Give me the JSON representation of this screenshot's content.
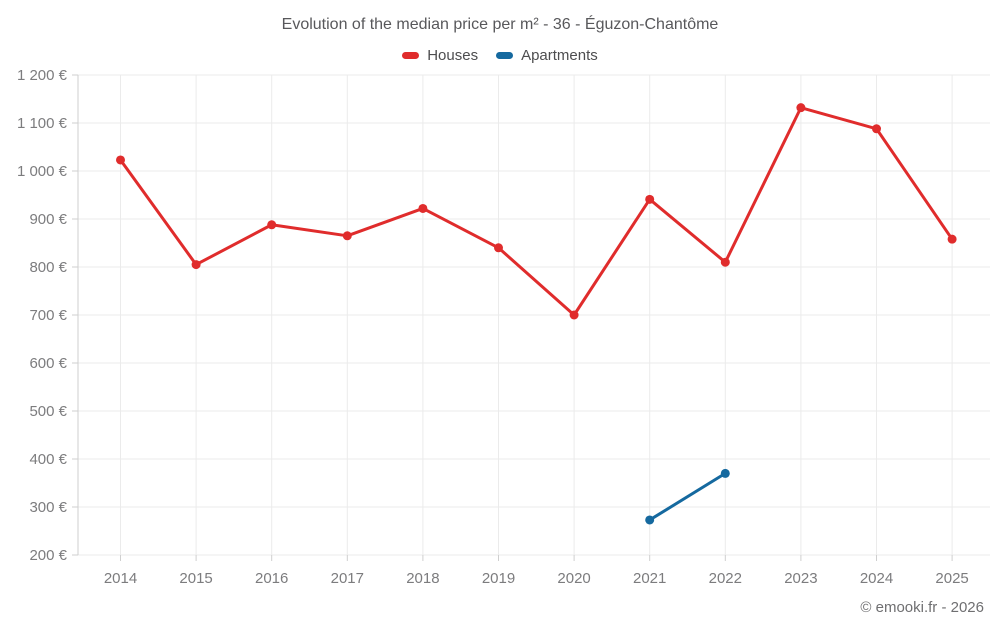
{
  "title": "Evolution of the median price per m² - 36 - Éguzon-Chantôme",
  "legend": [
    {
      "label": "Houses",
      "color": "#e02c2c"
    },
    {
      "label": "Apartments",
      "color": "#15699f"
    }
  ],
  "footer": "© emooki.fr - 2026",
  "chart_data": {
    "type": "line",
    "title": "Evolution of the median price per m² - 36 - Éguzon-Chantôme",
    "categories": [
      "2014",
      "2015",
      "2016",
      "2017",
      "2018",
      "2019",
      "2020",
      "2021",
      "2022",
      "2023",
      "2024",
      "2025"
    ],
    "series": [
      {
        "name": "Houses",
        "color": "#e02c2c",
        "values": [
          1023,
          805,
          888,
          865,
          922,
          840,
          700,
          941,
          810,
          1132,
          1088,
          858
        ]
      },
      {
        "name": "Apartments",
        "color": "#15699f",
        "values": [
          null,
          null,
          null,
          null,
          null,
          null,
          null,
          273,
          370,
          null,
          null,
          null
        ]
      }
    ],
    "xlabel": "",
    "ylabel": "",
    "y_ticks": [
      200,
      300,
      400,
      500,
      600,
      700,
      800,
      900,
      1000,
      1100,
      1200
    ],
    "y_tick_suffix": " €",
    "ylim": [
      200,
      1200
    ],
    "grid": true,
    "legend_position": "top"
  }
}
